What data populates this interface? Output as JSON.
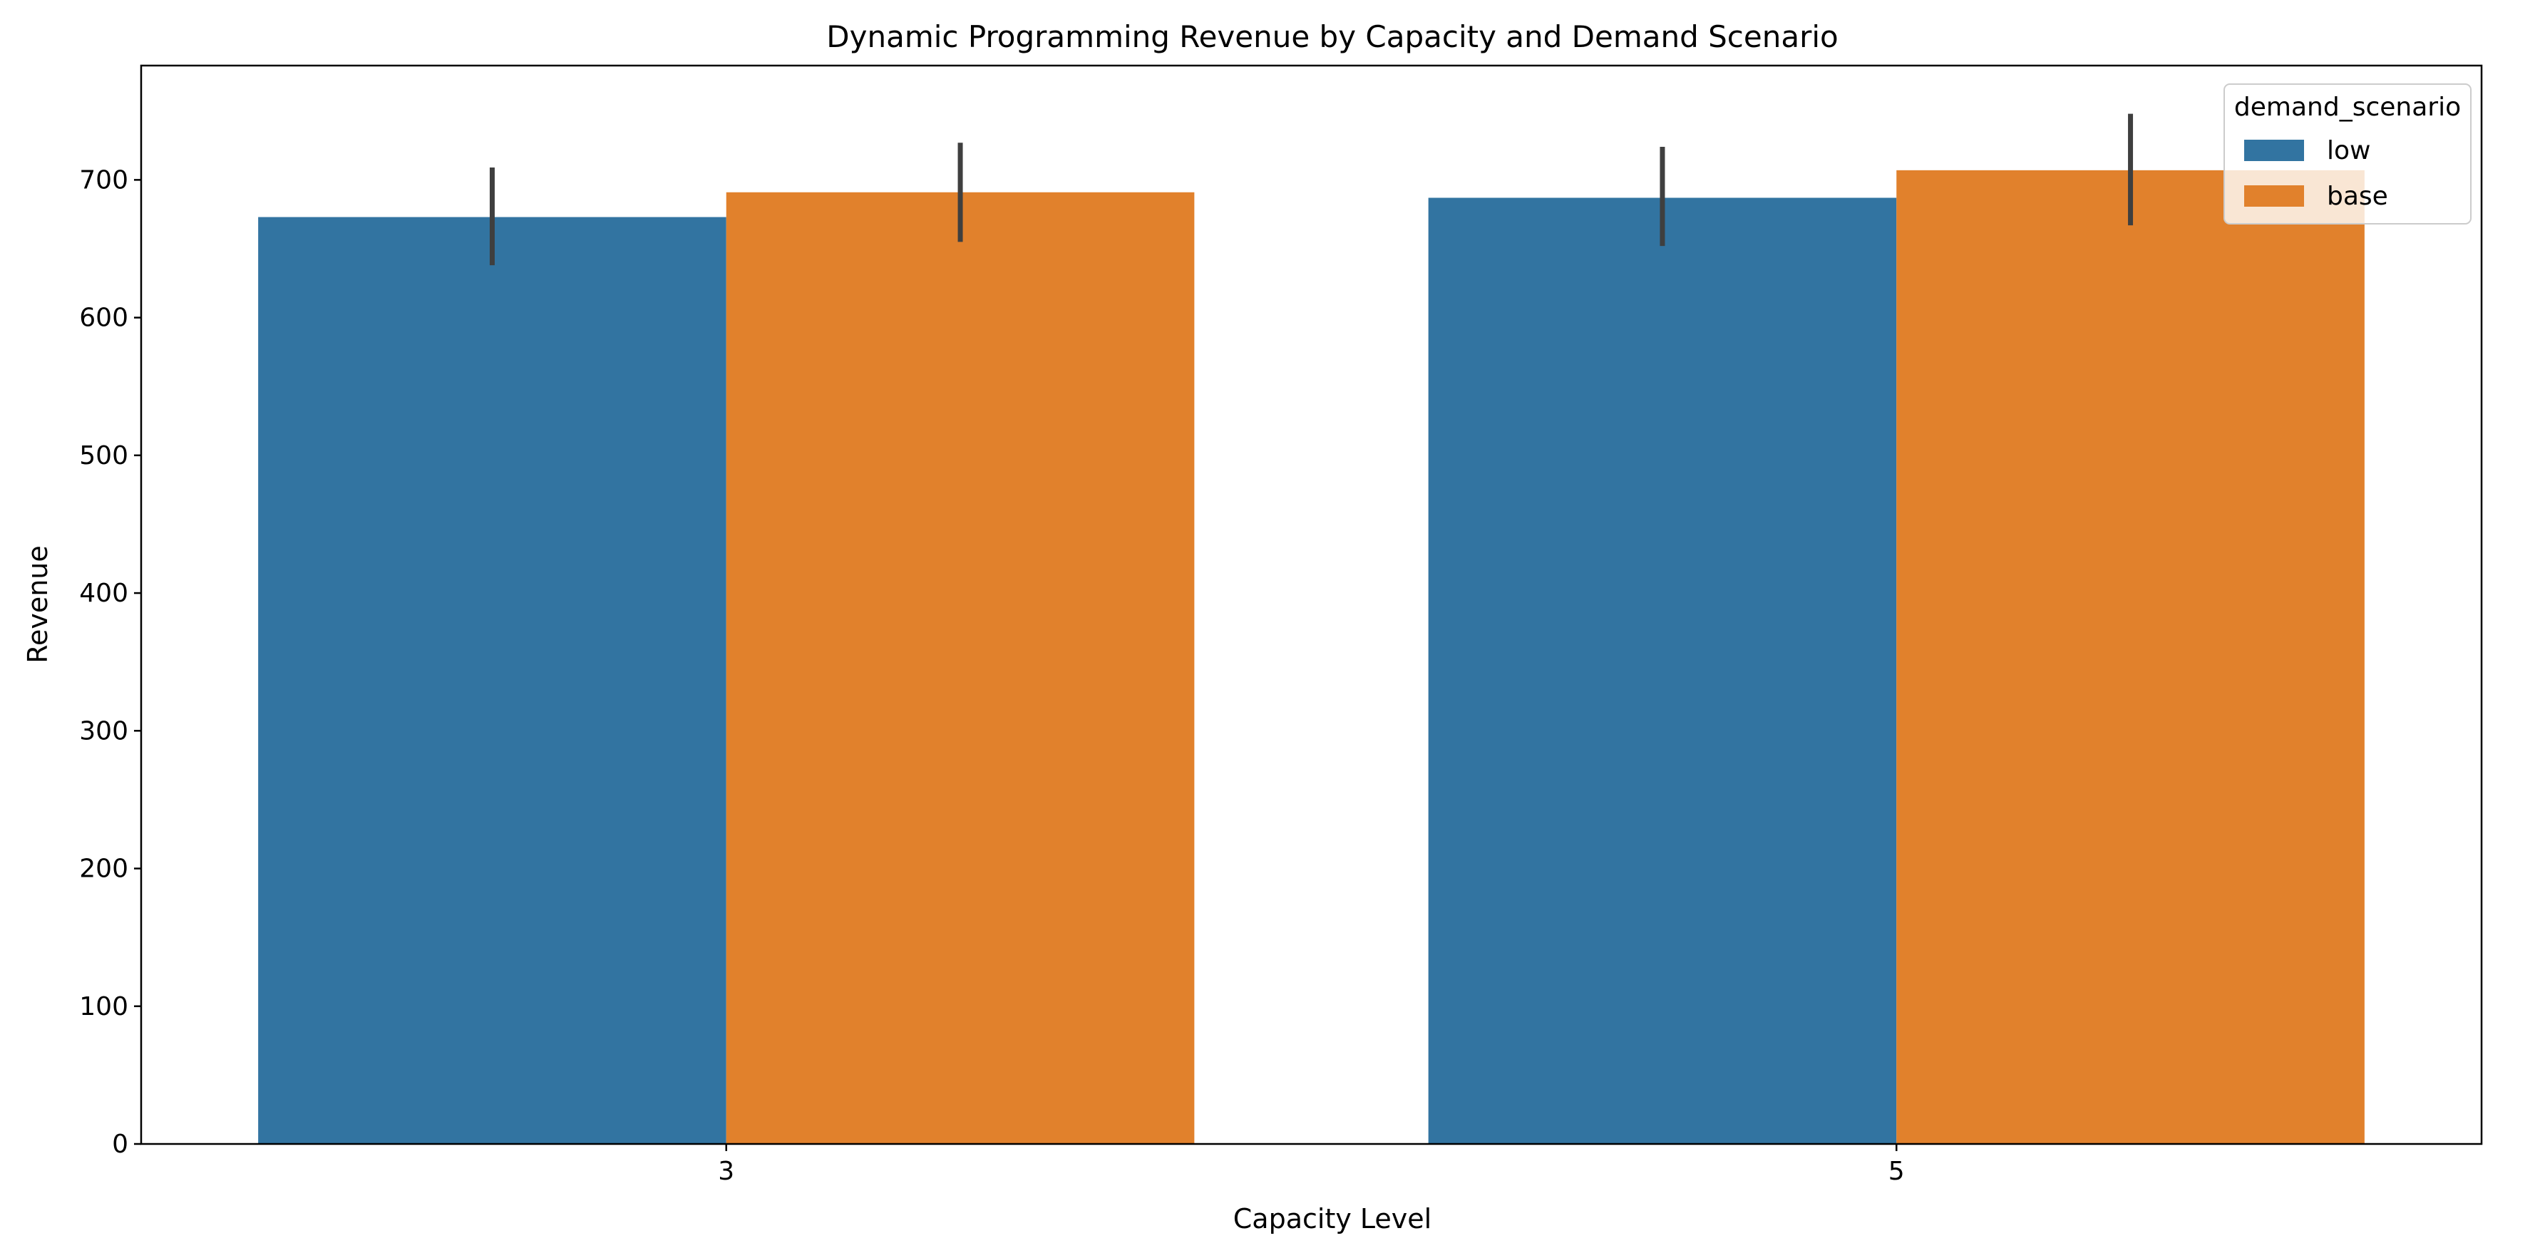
{
  "chart_data": {
    "type": "bar",
    "title": "Dynamic Programming Revenue by Capacity and Demand Scenario",
    "xlabel": "Capacity Level",
    "ylabel": "Revenue",
    "categories": [
      "3",
      "5"
    ],
    "ylim": [
      0,
      783
    ],
    "yticks": [
      0,
      100,
      200,
      300,
      400,
      500,
      600,
      700
    ],
    "grid": false,
    "legend": {
      "title": "demand_scenario",
      "placement": "top-right"
    },
    "series": [
      {
        "name": "low",
        "color": "#3274a1",
        "values": [
          673,
          687
        ],
        "ci_low": [
          638,
          652
        ],
        "ci_high": [
          709,
          724
        ]
      },
      {
        "name": "base",
        "color": "#e1812c",
        "values": [
          691,
          707
        ],
        "ci_low": [
          655,
          667
        ],
        "ci_high": [
          727,
          748
        ]
      }
    ],
    "errorbar_color": "#3f3f3f"
  }
}
